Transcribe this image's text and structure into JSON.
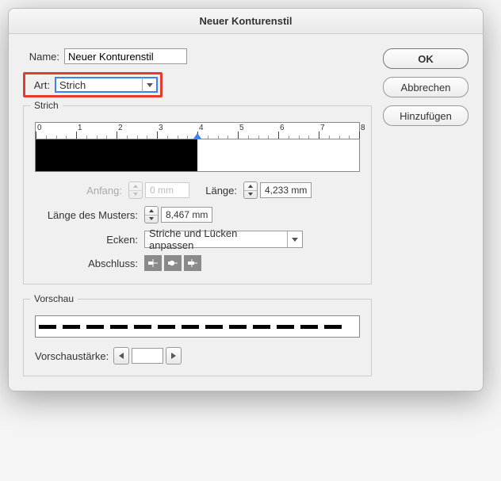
{
  "window": {
    "title": "Neuer Konturenstil"
  },
  "buttons": {
    "ok": "OK",
    "cancel": "Abbrechen",
    "add": "Hinzufügen"
  },
  "name": {
    "label": "Name:",
    "value": "Neuer Konturenstil"
  },
  "type": {
    "label": "Art:",
    "value": "Strich"
  },
  "strich": {
    "title": "Strich",
    "ruler": {
      "min": 0,
      "max": 8,
      "marker": 4.0
    },
    "pattern_ratio": 0.5,
    "start": {
      "label": "Anfang:",
      "value": "0 mm",
      "disabled": true
    },
    "length": {
      "label": "Länge:",
      "value": "4,233 mm"
    },
    "patternLength": {
      "label": "Länge des Musters:",
      "value": "8,467 mm"
    },
    "corners": {
      "label": "Ecken:",
      "value": "Striche und Lücken anpassen"
    },
    "caps": {
      "label": "Abschluss:"
    }
  },
  "preview": {
    "title": "Vorschau",
    "thicknessLabel": "Vorschaustärke:"
  },
  "colors": {
    "highlight_border": "#e53b2e",
    "focus_blue": "#3b82f6"
  }
}
